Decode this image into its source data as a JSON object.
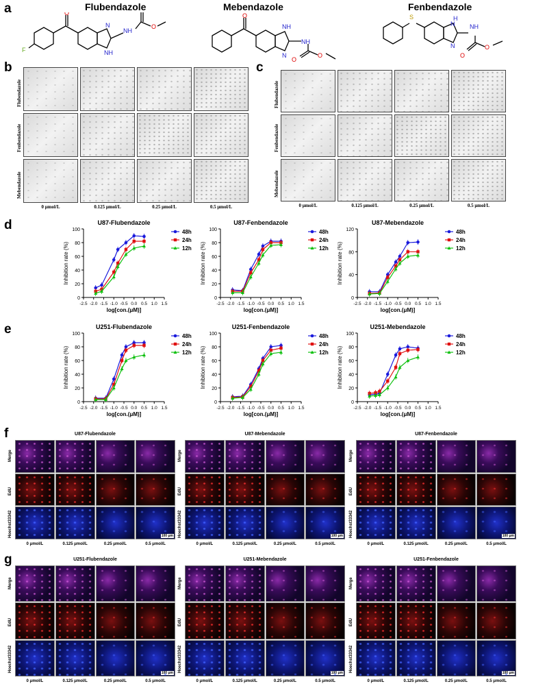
{
  "panels": {
    "a": "a",
    "b": "b",
    "c": "c",
    "d": "d",
    "e": "e",
    "f": "f",
    "g": "g"
  },
  "drugs": {
    "flu": "Flubendazole",
    "meb": "Mebendazole",
    "fen": "Fenbendazole"
  },
  "struct_atoms": {
    "F": "F",
    "O": "O",
    "NH": "NH",
    "N": "N",
    "H": "H",
    "S": "S"
  },
  "wound_rows": [
    "Flubendazole",
    "Fenbendazole",
    "Mebendazole"
  ],
  "wound_cols": [
    "0 μmol/L",
    "0.125 μmol/L",
    "0.25 μmol/L",
    "0.5 μmol/L"
  ],
  "edu_rows": [
    "Merge",
    "EdU",
    "Hoechst33342"
  ],
  "edu_cols": [
    "0 μmol/L",
    "0.125 μmol/L",
    "0.25 μmol/L",
    "0.5 μmol/L"
  ],
  "scale_bar": "100 μm",
  "f_titles": [
    "U87-Flubendazole",
    "U87-Mebendazole",
    "U87-Fenbendazole"
  ],
  "g_titles": [
    "U251-Flubendazole",
    "U251-Mebendazole",
    "U251-Fenbendazole"
  ],
  "colors": {
    "h48": "#1a1adc",
    "h24": "#e01010",
    "h12": "#10c010"
  },
  "chart_data": [
    {
      "type": "line",
      "title": "U87-Flubendazole",
      "xlabel": "log[con.(μM)]",
      "ylabel": "Inhibition rate (%)",
      "xlim": [
        -2.5,
        1.5
      ],
      "ylim": [
        0,
        100
      ],
      "yticks": [
        0,
        20,
        40,
        60,
        80,
        100
      ],
      "legend": "top-right",
      "x": [
        -1.9,
        -1.6,
        -1.0,
        -0.8,
        -0.4,
        0.0,
        0.5
      ],
      "series": [
        {
          "name": "48h",
          "values": [
            14,
            18,
            55,
            70,
            80,
            90,
            89
          ]
        },
        {
          "name": "24h",
          "values": [
            9,
            12,
            37,
            50,
            70,
            82,
            82
          ]
        },
        {
          "name": "12h",
          "values": [
            6,
            9,
            30,
            45,
            63,
            72,
            75
          ]
        }
      ]
    },
    {
      "type": "line",
      "title": "U87-Fenbendazole",
      "xlabel": "log[con.(μM)]",
      "ylabel": "Inhibition rate (%)",
      "xlim": [
        -2.5,
        1.5
      ],
      "ylim": [
        0,
        100
      ],
      "yticks": [
        0,
        20,
        40,
        60,
        80,
        100
      ],
      "legend": "top-right",
      "x": [
        -1.9,
        -1.4,
        -1.0,
        -0.6,
        -0.4,
        0.0,
        0.5
      ],
      "series": [
        {
          "name": "48h",
          "values": [
            11,
            10,
            41,
            63,
            75,
            82,
            82
          ]
        },
        {
          "name": "24h",
          "values": [
            9,
            9,
            36,
            55,
            70,
            80,
            80
          ]
        },
        {
          "name": "12h",
          "values": [
            7,
            7,
            30,
            50,
            62,
            76,
            77
          ]
        }
      ]
    },
    {
      "type": "line",
      "title": "U87-Mebendazole",
      "xlabel": "log[con.(μM)]",
      "ylabel": "Inhibition rate (%)",
      "xlim": [
        -2.5,
        1.5
      ],
      "ylim": [
        0,
        120
      ],
      "yticks": [
        0,
        40,
        80,
        120
      ],
      "legend": "top-right",
      "x": [
        -1.9,
        -1.4,
        -1.0,
        -0.6,
        -0.4,
        0.0,
        0.5
      ],
      "series": [
        {
          "name": "48h",
          "values": [
            10,
            10,
            40,
            62,
            72,
            96,
            97
          ]
        },
        {
          "name": "24h",
          "values": [
            7,
            8,
            35,
            55,
            66,
            80,
            80
          ]
        },
        {
          "name": "12h",
          "values": [
            6,
            7,
            28,
            50,
            60,
            72,
            74
          ]
        }
      ]
    },
    {
      "type": "line",
      "title": "U251-Flubendazole",
      "xlabel": "log[con.(μM)]",
      "ylabel": "Inhibition rate (%)",
      "xlim": [
        -2.5,
        1.5
      ],
      "ylim": [
        0,
        100
      ],
      "yticks": [
        0,
        20,
        40,
        60,
        80,
        100
      ],
      "legend": "top-right",
      "x": [
        -1.9,
        -1.4,
        -1.0,
        -0.6,
        -0.4,
        0.0,
        0.5
      ],
      "series": [
        {
          "name": "48h",
          "values": [
            5,
            5,
            33,
            68,
            80,
            86,
            86
          ]
        },
        {
          "name": "24h",
          "values": [
            4,
            4,
            25,
            60,
            75,
            82,
            82
          ]
        },
        {
          "name": "12h",
          "values": [
            3,
            3,
            20,
            48,
            60,
            65,
            68
          ]
        }
      ]
    },
    {
      "type": "line",
      "title": "U251-Fenbendazole",
      "xlabel": "log[con.(μM)]",
      "ylabel": "Inhibition rate (%)",
      "xlim": [
        -2.5,
        1.5
      ],
      "ylim": [
        0,
        100
      ],
      "yticks": [
        0,
        20,
        40,
        60,
        80,
        100
      ],
      "legend": "top-right",
      "x": [
        -1.9,
        -1.4,
        -1.0,
        -0.6,
        -0.4,
        0.0,
        0.5
      ],
      "series": [
        {
          "name": "48h",
          "values": [
            7,
            8,
            25,
            48,
            63,
            80,
            82
          ]
        },
        {
          "name": "24h",
          "values": [
            6,
            7,
            22,
            45,
            60,
            75,
            78
          ]
        },
        {
          "name": "12h",
          "values": [
            5,
            6,
            18,
            40,
            55,
            70,
            72
          ]
        }
      ]
    },
    {
      "type": "line",
      "title": "U251-Mebendazole",
      "xlabel": "log[con.(μM)]",
      "ylabel": "Inhibition rate (%)",
      "xlim": [
        -2.5,
        1.5
      ],
      "ylim": [
        0,
        100
      ],
      "yticks": [
        0,
        20,
        40,
        60,
        80,
        100
      ],
      "legend": "top-right",
      "x": [
        -1.9,
        -1.6,
        -1.4,
        -1.0,
        -0.6,
        -0.4,
        0.0,
        0.5
      ],
      "series": [
        {
          "name": "48h",
          "values": [
            10,
            11,
            12,
            40,
            68,
            77,
            80,
            78
          ]
        },
        {
          "name": "24h",
          "values": [
            12,
            13,
            15,
            30,
            50,
            70,
            75,
            76
          ]
        },
        {
          "name": "12h",
          "values": [
            8,
            9,
            10,
            20,
            36,
            50,
            60,
            65
          ]
        }
      ]
    }
  ]
}
